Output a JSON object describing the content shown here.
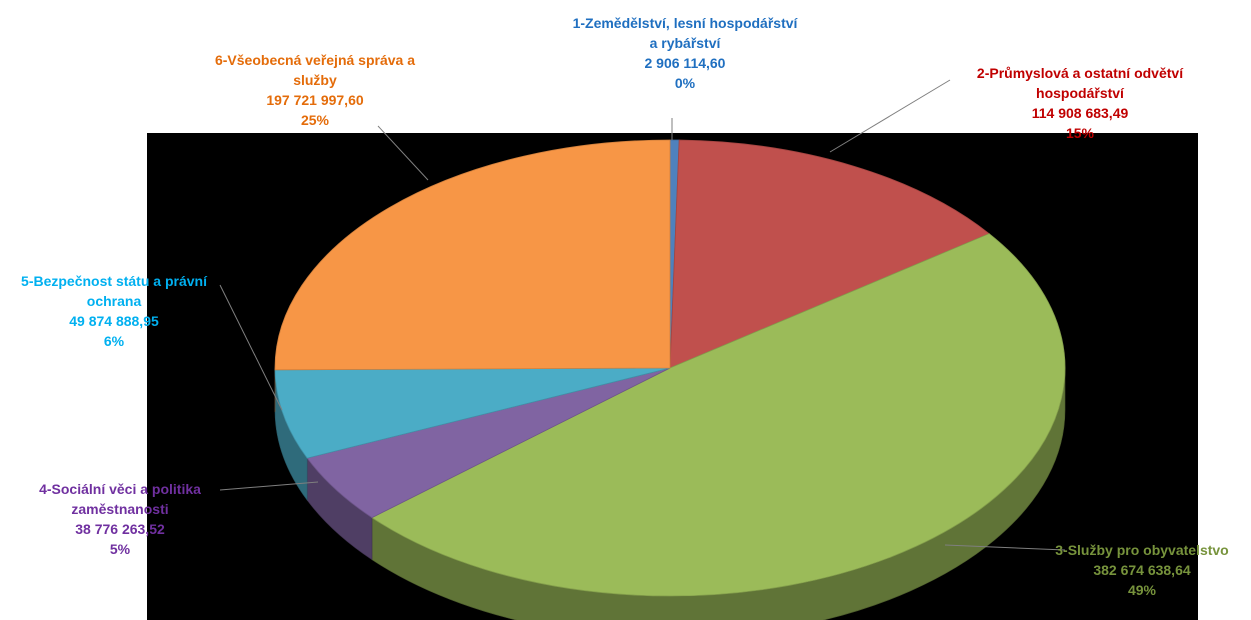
{
  "chart_data": {
    "type": "pie",
    "variant": "3d",
    "background_color": "#000000",
    "slices": [
      {
        "id": 1,
        "label_lines": [
          "1-Zemědělství, lesní hospodářství",
          "a rybářství"
        ],
        "value": 2906114.6,
        "value_text": "2 906 114,60",
        "percent_text": "0%",
        "color": "#4F81BD",
        "label_color": "#1F6FC0"
      },
      {
        "id": 2,
        "label_lines": [
          "2-Průmyslová a ostatní odvětví",
          "hospodářství"
        ],
        "value": 114908683.49,
        "value_text": "114 908 683,49",
        "percent_text": "15%",
        "color": "#C0504D",
        "label_color": "#C00000"
      },
      {
        "id": 3,
        "label_lines": [
          "3-Služby pro obyvatelstvo"
        ],
        "value": 382674638.64,
        "value_text": "382 674 638,64",
        "percent_text": "49%",
        "color": "#9BBB59",
        "label_color": "#77933C"
      },
      {
        "id": 4,
        "label_lines": [
          "4-Sociální věci a politika",
          "zaměstnanosti"
        ],
        "value": 38776263.52,
        "value_text": "38 776 263,52",
        "percent_text": "5%",
        "color": "#8064A2",
        "label_color": "#7030A0"
      },
      {
        "id": 5,
        "label_lines": [
          "5-Bezpečnost státu a právní",
          "ochrana"
        ],
        "value": 49874888.95,
        "value_text": "49 874 888,95",
        "percent_text": "6%",
        "color": "#4BACC6",
        "label_color": "#00B0F0"
      },
      {
        "id": 6,
        "label_lines": [
          "6-Všeobecná veřejná správa a",
          "služby"
        ],
        "value": 197721997.6,
        "value_text": "197 721 997,60",
        "percent_text": "25%",
        "color": "#F79646",
        "label_color": "#E46C0A"
      }
    ]
  }
}
